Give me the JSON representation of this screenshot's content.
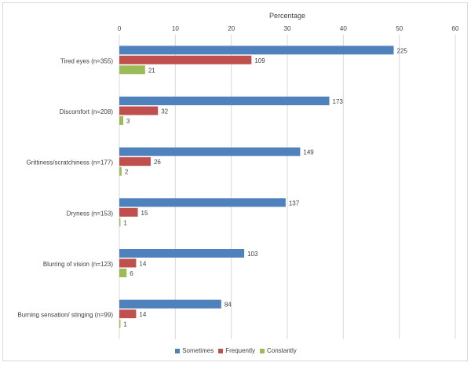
{
  "chart_data": {
    "type": "bar",
    "orientation": "horizontal",
    "xaxis_title": "Percentage",
    "xaxis_position": "top",
    "xlim": [
      0,
      60
    ],
    "xticks": [
      0,
      10,
      20,
      30,
      40,
      50,
      60
    ],
    "grid": true,
    "legend_position": "bottom",
    "categories": [
      "Tired eyes (n=355)",
      "Discomfort (n=208)",
      "Grittiness/scratchiness (n=177)",
      "Dryness (n=153)",
      "Blurring of vision (n=123)",
      "Burning sensation/ stinging (n=99)"
    ],
    "series": [
      {
        "name": "Sometimes",
        "color": "#4f81bd",
        "values": [
          49,
          37.5,
          32.3,
          29.7,
          22.3,
          18.2
        ],
        "labels": [
          "225",
          "173",
          "149",
          "137",
          "103",
          "84"
        ]
      },
      {
        "name": "Frequently",
        "color": "#c0504d",
        "values": [
          23.6,
          6.9,
          5.6,
          3.3,
          3.0,
          3.0
        ],
        "labels": [
          "109",
          "32",
          "26",
          "15",
          "14",
          "14"
        ]
      },
      {
        "name": "Constantly",
        "color": "#9bbb59",
        "values": [
          4.6,
          0.7,
          0.4,
          0.2,
          1.3,
          0.2
        ],
        "labels": [
          "21",
          "3",
          "2",
          "1",
          "6",
          "1"
        ]
      }
    ]
  }
}
